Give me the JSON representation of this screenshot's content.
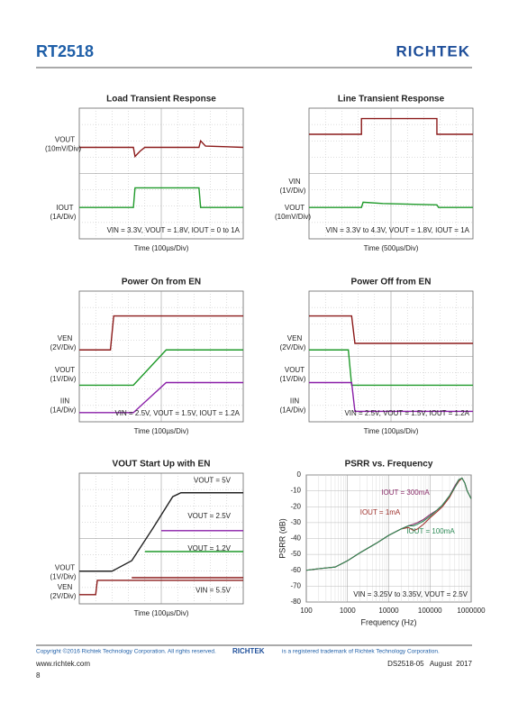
{
  "header": {
    "title": "RT2518",
    "logo": "RICHTEK"
  },
  "panels": [
    {
      "title": "Load Transient Response",
      "time": "Time (100µs/Div)",
      "conditions": "VIN = 3.3V, VOUT = 1.8V, IOUT = 0 to 1A",
      "channels": [
        {
          "label": "VOUT",
          "scale": "(10mV/Div)"
        },
        {
          "label": "IOUT",
          "scale": "(1A/Div)"
        }
      ],
      "notes": []
    },
    {
      "title": "Line Transient Response",
      "time": "Time (500µs/Div)",
      "conditions": "VIN = 3.3V to 4.3V, VOUT = 1.8V, IOUT = 1A",
      "channels": [
        {
          "label": "VIN",
          "scale": "(1V/Div)"
        },
        {
          "label": "VOUT",
          "scale": "(10mV/Div)"
        }
      ],
      "notes": []
    },
    {
      "title": "Power On from EN",
      "time": "Time (100µs/Div)",
      "conditions": "VIN = 2.5V, VOUT = 1.5V, IOUT = 1.2A",
      "channels": [
        {
          "label": "VEN",
          "scale": "(2V/Div)"
        },
        {
          "label": "VOUT",
          "scale": "(1V/Div)"
        },
        {
          "label": "IIN",
          "scale": "(1A/Div)"
        }
      ],
      "notes": []
    },
    {
      "title": "Power Off from EN",
      "time": "Time (100µs/Div)",
      "conditions": "VIN = 2.5V, VOUT = 1.5V, IOUT = 1.2A",
      "channels": [
        {
          "label": "VEN",
          "scale": "(2V/Div)"
        },
        {
          "label": "VOUT",
          "scale": "(1V/Div)"
        },
        {
          "label": "IIN",
          "scale": "(1A/Div)"
        }
      ],
      "notes": []
    },
    {
      "title": "VOUT Start Up with EN",
      "time": "Time (100µs/Div)",
      "conditions": "",
      "channels": [
        {
          "label": "VOUT",
          "scale": "(1V/Div)"
        },
        {
          "label": "VEN",
          "scale": "(2V/Div)"
        }
      ],
      "notes": [
        "VOUT = 5V",
        "VOUT = 2.5V",
        "VOUT = 1.2V",
        "VIN = 5.5V"
      ]
    }
  ],
  "psrr": {
    "title": "PSRR vs. Frequency",
    "x_label": "Frequency (Hz)",
    "y_label": "PSRR (dB)",
    "xlim": [
      100,
      1000000
    ],
    "xticks": [
      100,
      1000,
      10000,
      100000,
      1000000
    ],
    "log_x": true,
    "ylim": [
      -80,
      0
    ],
    "yticks": [
      0,
      -10,
      -20,
      -30,
      -40,
      -50,
      -60,
      -70,
      -80
    ],
    "grid": true,
    "x": [
      100,
      200,
      500,
      1000,
      2000,
      5000,
      10000,
      20000,
      30000,
      40000,
      50000,
      70000,
      100000,
      150000,
      200000,
      300000,
      400000,
      500000,
      600000,
      700000,
      800000,
      1000000
    ],
    "series": [
      {
        "name": "IOUT = 300mA",
        "color": "#8b2e6b",
        "values": [
          -60,
          -59,
          -58,
          -54,
          -49,
          -43,
          -38,
          -34,
          -32,
          -31,
          -30,
          -28,
          -25,
          -22,
          -19,
          -13,
          -7,
          -3,
          -2,
          -5,
          -10,
          -15
        ]
      },
      {
        "name": "IOUT = 1mA",
        "color": "#a0332e",
        "values": [
          -60,
          -59,
          -58,
          -54,
          -49,
          -43,
          -38,
          -34,
          -33,
          -35,
          -34,
          -31,
          -27,
          -23,
          -20,
          -14,
          -8,
          -4,
          -2,
          -5,
          -10,
          -15
        ]
      },
      {
        "name": "IOUT = 100mA",
        "color": "#2e8b57",
        "values": [
          -60,
          -59,
          -58,
          -54,
          -49,
          -43,
          -38,
          -34,
          -32,
          -32,
          -31,
          -29,
          -26,
          -22,
          -19,
          -13,
          -8,
          -3,
          -2,
          -5,
          -10,
          -15
        ]
      }
    ],
    "annotation": "VIN = 3.25V to 3.35V, VOUT = 2.5V"
  },
  "footer": {
    "copyright": "Copyright ©2016 Richtek Technology Corporation. All rights reserved.",
    "logo": "RICHTEK",
    "trademark": "is a registered trademark of Richtek Technology Corporation.",
    "website": "www.richtek.com",
    "doc": "DS2518-05   August  2017",
    "page": "8"
  }
}
